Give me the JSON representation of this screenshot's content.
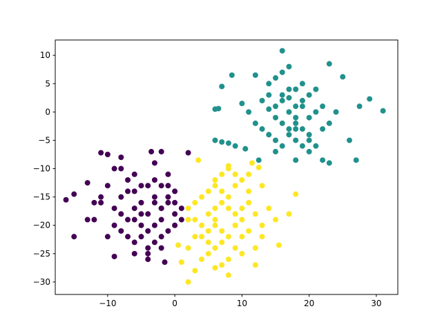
{
  "chart_data": {
    "type": "scatter",
    "xlim": [
      -17.8,
      33.2
    ],
    "ylim": [
      -32.2,
      12.7
    ],
    "xticks": [
      {
        "value": -10,
        "label": "−10"
      },
      0,
      10,
      20,
      30
    ],
    "yticks": [
      {
        "value": -30,
        "label": "−30"
      },
      {
        "value": -25,
        "label": "−25"
      },
      {
        "value": -20,
        "label": "−20"
      },
      {
        "value": -15,
        "label": "−15"
      },
      {
        "value": -10,
        "label": "−10"
      },
      {
        "value": -5,
        "label": "−5"
      },
      0,
      5,
      10
    ],
    "series": [
      {
        "color": "#440154",
        "x": [
          -16.2,
          -15,
          -15,
          -13,
          -11,
          -10,
          -8,
          -3.5,
          -2,
          2,
          -9,
          -1.5,
          -13,
          -12,
          -4,
          -6,
          -5,
          -4,
          -3,
          -2,
          -1,
          0,
          1,
          -7,
          -8,
          -9,
          -6,
          -5,
          -4,
          -3,
          -2,
          -1,
          0,
          -7,
          -6,
          -5,
          -3,
          -2,
          -1,
          -10,
          -11,
          -9,
          -8,
          -7,
          -6,
          -4,
          -3,
          -5,
          -2,
          -1,
          0,
          1,
          -12,
          -11,
          -8,
          -6,
          -4,
          -2,
          0,
          -7,
          -5,
          -3,
          -1,
          -9,
          -10,
          -6,
          -4,
          -2,
          -8,
          -3
        ],
        "values": [
          -15.5,
          -22,
          -14.5,
          -12.5,
          -7.2,
          -7.5,
          -8,
          -7,
          -7,
          -7.2,
          -25.5,
          -26.5,
          -19,
          -19,
          -26,
          -17,
          -16,
          -18,
          -15,
          -17,
          -16,
          -18,
          -19,
          -14,
          -15,
          -17,
          -19,
          -20,
          -21,
          -20,
          -19,
          -15,
          -14,
          -12,
          -11,
          -13,
          -12,
          -13,
          -11,
          -13,
          -16,
          -20,
          -21,
          -22,
          -23,
          -24,
          -23,
          -22,
          -22,
          -21,
          -20,
          -17,
          -16,
          -15,
          -18,
          -14,
          -13,
          -17,
          -16,
          -19,
          -18,
          -16,
          -13,
          -10,
          -22,
          -25,
          -25,
          -24,
          -10,
          -9
        ]
      },
      {
        "color": "#21918c",
        "x": [
          16,
          31,
          29,
          27.5,
          26,
          27,
          22,
          23,
          6,
          6.5,
          7,
          8.5,
          10,
          12,
          6,
          7,
          8,
          9,
          10.5,
          12.5,
          18,
          25,
          23,
          15,
          16,
          17,
          18,
          19,
          20,
          14,
          13,
          15,
          16,
          17,
          18,
          19,
          20,
          21,
          22,
          14,
          15,
          16,
          17,
          18,
          19,
          20,
          21,
          13,
          12,
          11,
          14,
          15,
          16,
          17,
          18,
          19,
          20,
          22,
          23,
          24,
          16,
          17,
          18,
          19,
          15,
          20,
          21,
          14,
          17,
          18
        ],
        "values": [
          10.8,
          0.2,
          2.3,
          1,
          -5,
          -8.5,
          -8.5,
          -9,
          0.5,
          0.6,
          4.5,
          6.5,
          1.5,
          6.5,
          -5,
          -5.3,
          -5.5,
          -6,
          -6.5,
          -8.5,
          -8.5,
          6.2,
          8.5,
          1,
          2,
          0,
          1,
          2,
          -1,
          3,
          2,
          -1,
          -2,
          -3,
          -2,
          -3,
          -4,
          0,
          1,
          5,
          6,
          7,
          8,
          4,
          5,
          3,
          4,
          -3,
          -2,
          0,
          -4,
          -5,
          -6,
          -4,
          -5,
          -6,
          -5,
          -3,
          -2,
          0,
          3,
          4,
          -1,
          1,
          -7,
          -7,
          -6,
          0.5,
          2.5,
          -3
        ]
      },
      {
        "color": "#fde725",
        "x": [
          3.5,
          8,
          11.5,
          12.5,
          18,
          17,
          15,
          15.5,
          13,
          12,
          8,
          6,
          3,
          2,
          1,
          2,
          0.5,
          5,
          6,
          7,
          8,
          9,
          10,
          4,
          3,
          5,
          6,
          7,
          8,
          9,
          10,
          11,
          12,
          4,
          5,
          6,
          7,
          8,
          9,
          10,
          11,
          3,
          2,
          4,
          5,
          6,
          7,
          9,
          10,
          11,
          13,
          14,
          6,
          7,
          8,
          9,
          5,
          4,
          3,
          10,
          12,
          13,
          8,
          7,
          11,
          6,
          9,
          2
        ],
        "values": [
          -8.5,
          -9.5,
          -9,
          -9.8,
          -14.5,
          -18,
          -19,
          -23.5,
          -22,
          -27,
          -28.8,
          -27.5,
          -28,
          -30,
          -26.5,
          -24,
          -23.5,
          -18,
          -17,
          -16,
          -17,
          -18,
          -19,
          -20,
          -19,
          -21,
          -20,
          -21,
          -22,
          -20,
          -17,
          -16,
          -18,
          -15,
          -14,
          -13,
          -14,
          -15,
          -13,
          -12,
          -14,
          -16,
          -17,
          -22,
          -23,
          -24,
          -23,
          -24,
          -22,
          -21,
          -20,
          -17,
          -12,
          -11,
          -10,
          -11,
          -25,
          -26,
          -22,
          -25,
          -24,
          -13,
          -26,
          -27,
          -11,
          -19,
          -20,
          -19
        ]
      }
    ]
  }
}
